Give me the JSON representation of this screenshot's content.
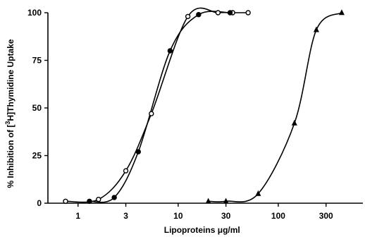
{
  "chart_data": {
    "type": "scatter",
    "xscale": "log",
    "xlim": [
      0.5,
      700
    ],
    "ylim": [
      0,
      100
    ],
    "xlabel": "Lipoproteins μg/ml",
    "ylabel": "% Inhibition of [3H]Thymidine Uptake",
    "xticks": [
      1,
      3,
      10,
      30,
      100,
      300
    ],
    "xtick_labels": [
      "1",
      "3",
      "10",
      "30",
      "100",
      "300"
    ],
    "yticks": [
      0,
      25,
      50,
      75,
      100
    ],
    "ytick_labels": [
      "0",
      "25",
      "50",
      "75",
      "100"
    ],
    "grid": false,
    "legend": "none",
    "series": [
      {
        "marker": "open-circle",
        "x": [
          0.75,
          1.6,
          3.0,
          5.4,
          12.5,
          25,
          35,
          50
        ],
        "y": [
          1,
          2,
          17,
          47,
          98,
          100,
          100,
          100
        ]
      },
      {
        "marker": "filled-circle",
        "x": [
          1.3,
          2.3,
          4.0,
          8.3,
          16,
          33
        ],
        "y": [
          1,
          3,
          27,
          80,
          99,
          100
        ]
      },
      {
        "marker": "filled-triangle",
        "x": [
          20,
          30,
          63,
          145,
          240,
          430
        ],
        "y": [
          1,
          1,
          5,
          42,
          91,
          100
        ]
      }
    ]
  }
}
